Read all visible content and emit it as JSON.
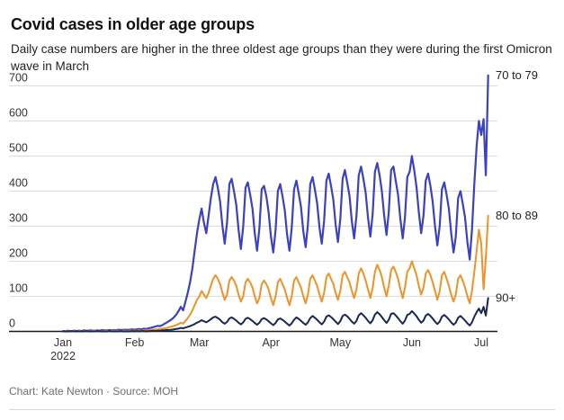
{
  "header": {
    "title": "Covid cases in older age groups",
    "subtitle": "Daily case numbers are higher in the three oldest age groups than they were during the first Omicron wave in March"
  },
  "footer": {
    "credit": "Chart: Kate Newton · Source: MOH"
  },
  "colors": {
    "background": "#ffffff",
    "grid": "#dcdcdc",
    "axis_baseline": "#1a1a1a",
    "tick_text": "#333333",
    "series_label_text": "#222222",
    "footer_text": "#6f6f6f",
    "blue_70_79": "#3a41c2",
    "orange_80_89": "#f09226",
    "navy_90_plus": "#182850"
  },
  "chart_data": {
    "type": "line",
    "title": "Covid cases in older age groups",
    "xlabel": "",
    "ylabel": "",
    "x_unit": "day",
    "x_start": "2022-01-01",
    "x_end": "2022-07-04",
    "ylim": [
      0,
      730
    ],
    "grid": true,
    "legend_position": "right-of-line-end",
    "y_ticks": [
      0,
      100,
      200,
      300,
      400,
      500,
      600,
      700
    ],
    "x_ticks": [
      {
        "label": "Jan",
        "sublabel": "2022",
        "day": 0
      },
      {
        "label": "Feb",
        "day": 31
      },
      {
        "label": "Mar",
        "day": 59
      },
      {
        "label": "Apr",
        "day": 90
      },
      {
        "label": "May",
        "day": 120
      },
      {
        "label": "Jun",
        "day": 151
      },
      {
        "label": "Jul",
        "day": 181
      }
    ],
    "series": [
      {
        "name": "70 to 79",
        "color": "#3a41c2",
        "values": [
          1,
          0,
          2,
          1,
          1,
          2,
          1,
          2,
          1,
          3,
          2,
          2,
          3,
          2,
          2,
          3,
          2,
          4,
          3,
          3,
          4,
          3,
          4,
          3,
          5,
          4,
          4,
          5,
          4,
          5,
          6,
          5,
          6,
          7,
          6,
          8,
          7,
          9,
          10,
          12,
          14,
          16,
          15,
          18,
          22,
          26,
          30,
          34,
          40,
          48,
          58,
          70,
          60,
          85,
          110,
          140,
          180,
          230,
          280,
          320,
          350,
          310,
          280,
          330,
          380,
          420,
          440,
          410,
          370,
          300,
          250,
          310,
          420,
          435,
          400,
          360,
          290,
          235,
          300,
          410,
          425,
          390,
          350,
          280,
          230,
          295,
          405,
          415,
          385,
          340,
          270,
          225,
          290,
          400,
          420,
          385,
          345,
          275,
          230,
          295,
          405,
          430,
          395,
          355,
          285,
          240,
          305,
          420,
          440,
          405,
          365,
          295,
          250,
          315,
          430,
          450,
          415,
          375,
          305,
          255,
          320,
          435,
          460,
          425,
          385,
          315,
          265,
          330,
          445,
          470,
          435,
          395,
          325,
          270,
          335,
          455,
          480,
          445,
          400,
          330,
          275,
          340,
          460,
          470,
          430,
          390,
          320,
          265,
          325,
          440,
          455,
          500,
          460,
          410,
          340,
          280,
          330,
          430,
          450,
          415,
          370,
          300,
          245,
          300,
          405,
          425,
          390,
          350,
          280,
          225,
          270,
          380,
          400,
          365,
          325,
          255,
          205,
          290,
          420,
          530,
          600,
          560,
          605,
          445,
          730
        ]
      },
      {
        "name": "80 to 89",
        "color": "#f09226",
        "values": [
          0,
          0,
          1,
          0,
          1,
          1,
          0,
          1,
          0,
          1,
          1,
          0,
          1,
          1,
          1,
          1,
          0,
          1,
          1,
          2,
          1,
          1,
          2,
          1,
          2,
          1,
          2,
          2,
          1,
          2,
          2,
          2,
          2,
          3,
          2,
          3,
          3,
          4,
          4,
          5,
          6,
          6,
          7,
          8,
          9,
          10,
          12,
          14,
          16,
          18,
          21,
          25,
          22,
          30,
          38,
          48,
          60,
          75,
          90,
          100,
          115,
          105,
          95,
          110,
          130,
          150,
          160,
          150,
          135,
          110,
          90,
          105,
          145,
          155,
          145,
          130,
          105,
          85,
          100,
          140,
          150,
          140,
          125,
          100,
          80,
          95,
          135,
          145,
          135,
          120,
          95,
          75,
          100,
          140,
          150,
          135,
          120,
          95,
          75,
          100,
          145,
          155,
          140,
          125,
          100,
          80,
          105,
          150,
          160,
          145,
          130,
          105,
          85,
          110,
          155,
          165,
          150,
          135,
          110,
          90,
          115,
          160,
          170,
          155,
          140,
          115,
          95,
          120,
          165,
          180,
          165,
          145,
          120,
          95,
          125,
          170,
          190,
          175,
          155,
          125,
          100,
          130,
          175,
          185,
          170,
          150,
          120,
          95,
          125,
          170,
          180,
          200,
          180,
          160,
          130,
          105,
          125,
          165,
          175,
          160,
          140,
          115,
          90,
          115,
          160,
          170,
          150,
          130,
          105,
          85,
          105,
          150,
          160,
          145,
          125,
          100,
          80,
          115,
          170,
          230,
          290,
          250,
          120,
          210,
          330
        ]
      },
      {
        "name": "90+",
        "color": "#182850",
        "values": [
          0,
          0,
          0,
          0,
          1,
          0,
          0,
          0,
          0,
          0,
          1,
          0,
          0,
          0,
          0,
          1,
          0,
          0,
          0,
          0,
          1,
          0,
          0,
          0,
          0,
          1,
          0,
          0,
          0,
          0,
          1,
          0,
          1,
          0,
          1,
          1,
          0,
          1,
          1,
          2,
          1,
          2,
          2,
          3,
          3,
          4,
          4,
          5,
          6,
          7,
          8,
          10,
          9,
          11,
          13,
          15,
          18,
          21,
          25,
          28,
          32,
          29,
          26,
          30,
          35,
          40,
          42,
          38,
          33,
          26,
          22,
          27,
          37,
          40,
          36,
          31,
          25,
          20,
          26,
          36,
          39,
          35,
          30,
          24,
          19,
          25,
          35,
          38,
          34,
          29,
          23,
          18,
          24,
          34,
          37,
          33,
          28,
          22,
          17,
          23,
          33,
          40,
          36,
          30,
          24,
          19,
          26,
          38,
          44,
          39,
          33,
          26,
          20,
          28,
          42,
          46,
          41,
          35,
          28,
          21,
          29,
          44,
          48,
          43,
          36,
          28,
          22,
          30,
          46,
          52,
          46,
          39,
          30,
          23,
          32,
          48,
          55,
          49,
          41,
          32,
          24,
          33,
          50,
          52,
          46,
          38,
          29,
          22,
          31,
          47,
          50,
          58,
          51,
          43,
          33,
          25,
          31,
          45,
          50,
          44,
          37,
          28,
          21,
          28,
          42,
          47,
          41,
          34,
          26,
          19,
          25,
          39,
          44,
          38,
          31,
          23,
          17,
          26,
          42,
          55,
          65,
          52,
          70,
          45,
          95
        ]
      }
    ]
  }
}
